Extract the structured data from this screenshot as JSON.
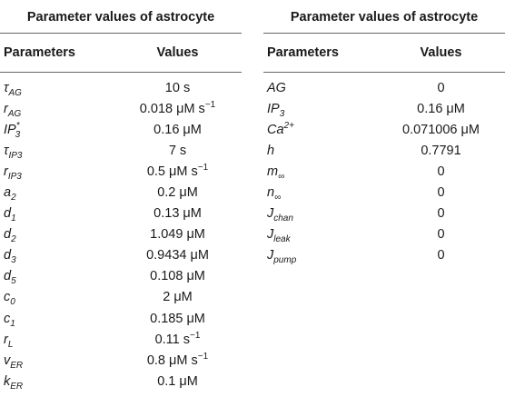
{
  "left_table": {
    "title": "Parameter values of astrocyte",
    "headers": [
      "Parameters",
      "Values"
    ],
    "rows": [
      {
        "base": "τ",
        "sub": "AG",
        "sup": "",
        "value": "10 s",
        "vsup": ""
      },
      {
        "base": "r",
        "sub": "AG",
        "sup": "",
        "value": "0.018 μM s",
        "vsup": "−1"
      },
      {
        "base": "IP",
        "sub": "3",
        "sup": "*",
        "value": "0.16 μM",
        "vsup": ""
      },
      {
        "base": "τ",
        "sub": "IP3",
        "sup": "",
        "value": "7 s",
        "vsup": ""
      },
      {
        "base": "r",
        "sub": "IP3",
        "sup": "",
        "value": "0.5 μM s",
        "vsup": "−1"
      },
      {
        "base": "a",
        "sub": "2",
        "sup": "",
        "value": "0.2 μM",
        "vsup": ""
      },
      {
        "base": "d",
        "sub": "1",
        "sup": "",
        "value": "0.13 μM",
        "vsup": ""
      },
      {
        "base": "d",
        "sub": "2",
        "sup": "",
        "value": "1.049 μM",
        "vsup": ""
      },
      {
        "base": "d",
        "sub": "3",
        "sup": "",
        "value": "0.9434 μM",
        "vsup": ""
      },
      {
        "base": "d",
        "sub": "5",
        "sup": "",
        "value": "0.108 μM",
        "vsup": ""
      },
      {
        "base": "c",
        "sub": "0",
        "sup": "",
        "value": "2 μM",
        "vsup": ""
      },
      {
        "base": "c",
        "sub": "1",
        "sup": "",
        "value": "0.185 μM",
        "vsup": ""
      },
      {
        "base": "r",
        "sub": "L",
        "sup": "",
        "value": "0.11 s",
        "vsup": "−1"
      },
      {
        "base": "v",
        "sub": "ER",
        "sup": "",
        "value": "0.8 μM s",
        "vsup": "−1"
      },
      {
        "base": "k",
        "sub": "ER",
        "sup": "",
        "value": "0.1 μM",
        "vsup": ""
      }
    ]
  },
  "right_table": {
    "title": "Parameter values of astrocyte",
    "headers": [
      "Parameters",
      "Values"
    ],
    "rows": [
      {
        "base": "AG",
        "sub": "",
        "sup": "",
        "value": "0",
        "vsup": ""
      },
      {
        "base": "IP",
        "sub": "3",
        "sup": "",
        "value": "0.16 μM",
        "vsup": ""
      },
      {
        "base": "Ca",
        "sub": "",
        "sup": "2+",
        "value": "0.071006 μM",
        "vsup": ""
      },
      {
        "base": "h",
        "sub": "",
        "sup": "",
        "value": "0.7791",
        "vsup": ""
      },
      {
        "base": "m",
        "sub": "∞",
        "sup": "",
        "value": "0",
        "vsup": ""
      },
      {
        "base": "n",
        "sub": "∞",
        "sup": "",
        "value": "0",
        "vsup": ""
      },
      {
        "base": "J",
        "sub": "chan",
        "sup": "",
        "value": "0",
        "vsup": ""
      },
      {
        "base": "J",
        "sub": "leak",
        "sup": "",
        "value": "0",
        "vsup": ""
      },
      {
        "base": "J",
        "sub": "pump",
        "sup": "",
        "value": "0",
        "vsup": ""
      }
    ]
  }
}
